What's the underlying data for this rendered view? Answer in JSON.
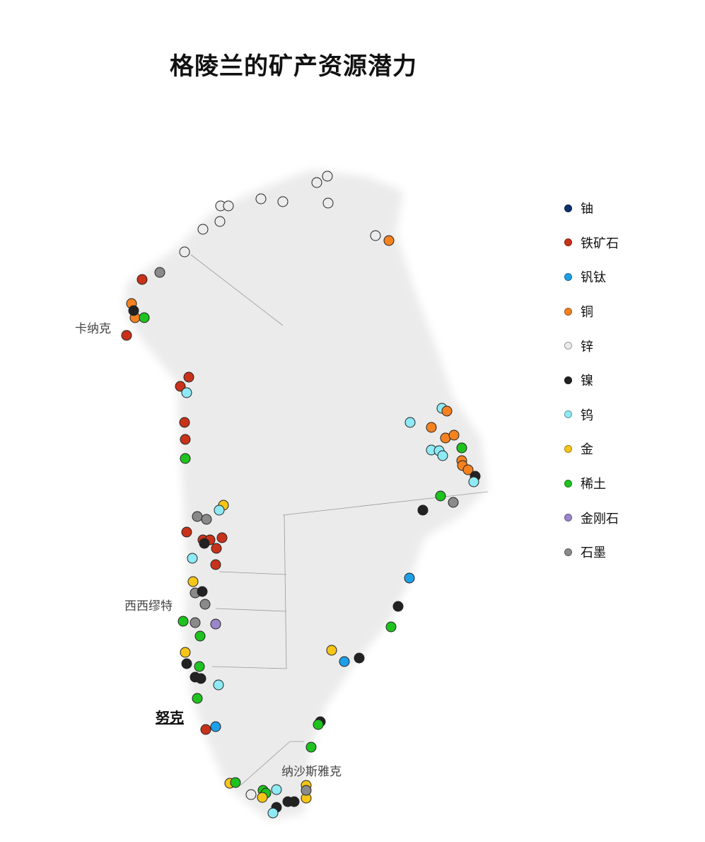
{
  "title": "格陵兰的矿产资源潜力",
  "places": {
    "qaanaaq": "卡纳克",
    "sisimiut": "西西缪特",
    "nuuk": "努克",
    "narsarsuaq": "纳沙斯雅克"
  },
  "legend": [
    {
      "key": "u",
      "label": "铀",
      "color": "#0d2f6e"
    },
    {
      "key": "fe",
      "label": "铁矿石",
      "color": "#c9321a"
    },
    {
      "key": "vti",
      "label": "钒钛",
      "color": "#1ea0e8"
    },
    {
      "key": "cu",
      "label": "铜",
      "color": "#f58220"
    },
    {
      "key": "zn",
      "label": "锌",
      "color": "#ececec"
    },
    {
      "key": "ni",
      "label": "镍",
      "color": "#222222"
    },
    {
      "key": "w",
      "label": "钨",
      "color": "#8eeaf5"
    },
    {
      "key": "au",
      "label": "金",
      "color": "#f7c518"
    },
    {
      "key": "ree",
      "label": "稀土",
      "color": "#1fc31f"
    },
    {
      "key": "dia",
      "label": "金刚石",
      "color": "#9b86cc"
    },
    {
      "key": "gr",
      "label": "石墨",
      "color": "#8a8a8a"
    }
  ]
}
